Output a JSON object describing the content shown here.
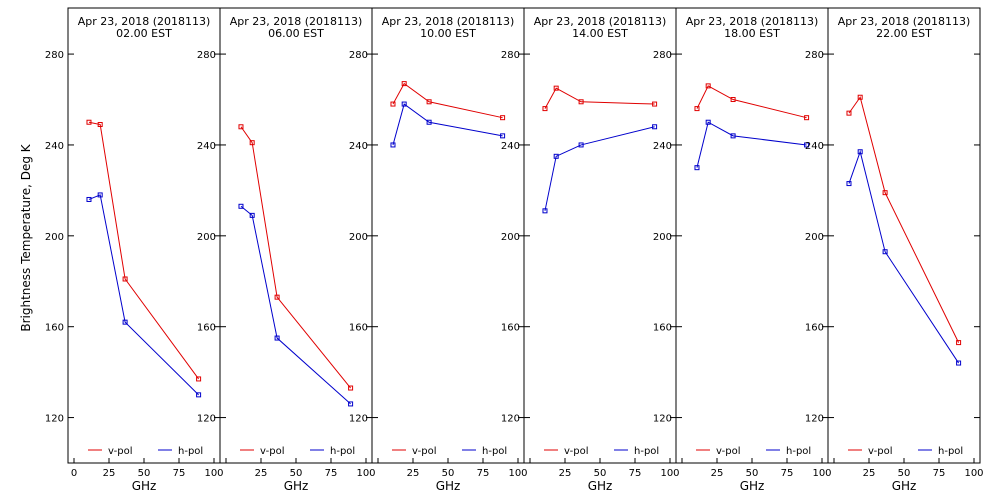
{
  "chart_data": {
    "type": "line",
    "ylabel": "Brightness Temperature, Deg K",
    "xlabel": "GHz",
    "ylim": [
      100,
      295
    ],
    "xlim": [
      0,
      100
    ],
    "y_ticks": [
      120,
      160,
      200,
      240,
      280
    ],
    "x_ticks": [
      0,
      25,
      50,
      75,
      100
    ],
    "grid": false,
    "legend_placement": "bottom",
    "series_colors": {
      "v-pol": "#e00000",
      "h-pol": "#0000cc"
    },
    "panels": [
      {
        "title_line1": "Apr 23, 2018 (2018113)",
        "title_line2": "02.00 EST",
        "series": [
          {
            "name": "v-pol",
            "x": [
              10.7,
              18.7,
              36.5,
              89.0
            ],
            "y": [
              250,
              249,
              181,
              137
            ]
          },
          {
            "name": "h-pol",
            "x": [
              10.7,
              18.7,
              36.5,
              89.0
            ],
            "y": [
              216,
              218,
              162,
              130
            ]
          }
        ]
      },
      {
        "title_line1": "Apr 23, 2018 (2018113)",
        "title_line2": "06.00 EST",
        "series": [
          {
            "name": "v-pol",
            "x": [
              10.7,
              18.7,
              36.5,
              89.0
            ],
            "y": [
              248,
              241,
              173,
              133
            ]
          },
          {
            "name": "h-pol",
            "x": [
              10.7,
              18.7,
              36.5,
              89.0
            ],
            "y": [
              213,
              209,
              155,
              126
            ]
          }
        ]
      },
      {
        "title_line1": "Apr 23, 2018 (2018113)",
        "title_line2": "10.00 EST",
        "series": [
          {
            "name": "v-pol",
            "x": [
              10.7,
              18.7,
              36.5,
              89.0
            ],
            "y": [
              258,
              267,
              259,
              252
            ]
          },
          {
            "name": "h-pol",
            "x": [
              10.7,
              18.7,
              36.5,
              89.0
            ],
            "y": [
              240,
              258,
              250,
              244
            ]
          }
        ]
      },
      {
        "title_line1": "Apr 23, 2018 (2018113)",
        "title_line2": "14.00 EST",
        "series": [
          {
            "name": "v-pol",
            "x": [
              10.7,
              18.7,
              36.5,
              89.0
            ],
            "y": [
              256,
              265,
              259,
              258
            ]
          },
          {
            "name": "h-pol",
            "x": [
              10.7,
              18.7,
              36.5,
              89.0
            ],
            "y": [
              211,
              235,
              240,
              248
            ]
          }
        ]
      },
      {
        "title_line1": "Apr 23, 2018 (2018113)",
        "title_line2": "18.00 EST",
        "series": [
          {
            "name": "v-pol",
            "x": [
              10.7,
              18.7,
              36.5,
              89.0
            ],
            "y": [
              256,
              266,
              260,
              252
            ]
          },
          {
            "name": "h-pol",
            "x": [
              10.7,
              18.7,
              36.5,
              89.0
            ],
            "y": [
              230,
              250,
              244,
              240
            ]
          }
        ]
      },
      {
        "title_line1": "Apr 23, 2018 (2018113)",
        "title_line2": "22.00 EST",
        "series": [
          {
            "name": "v-pol",
            "x": [
              10.7,
              18.7,
              36.5,
              89.0
            ],
            "y": [
              254,
              261,
              219,
              153
            ]
          },
          {
            "name": "h-pol",
            "x": [
              10.7,
              18.7,
              36.5,
              89.0
            ],
            "y": [
              223,
              237,
              193,
              144
            ]
          }
        ]
      }
    ]
  }
}
